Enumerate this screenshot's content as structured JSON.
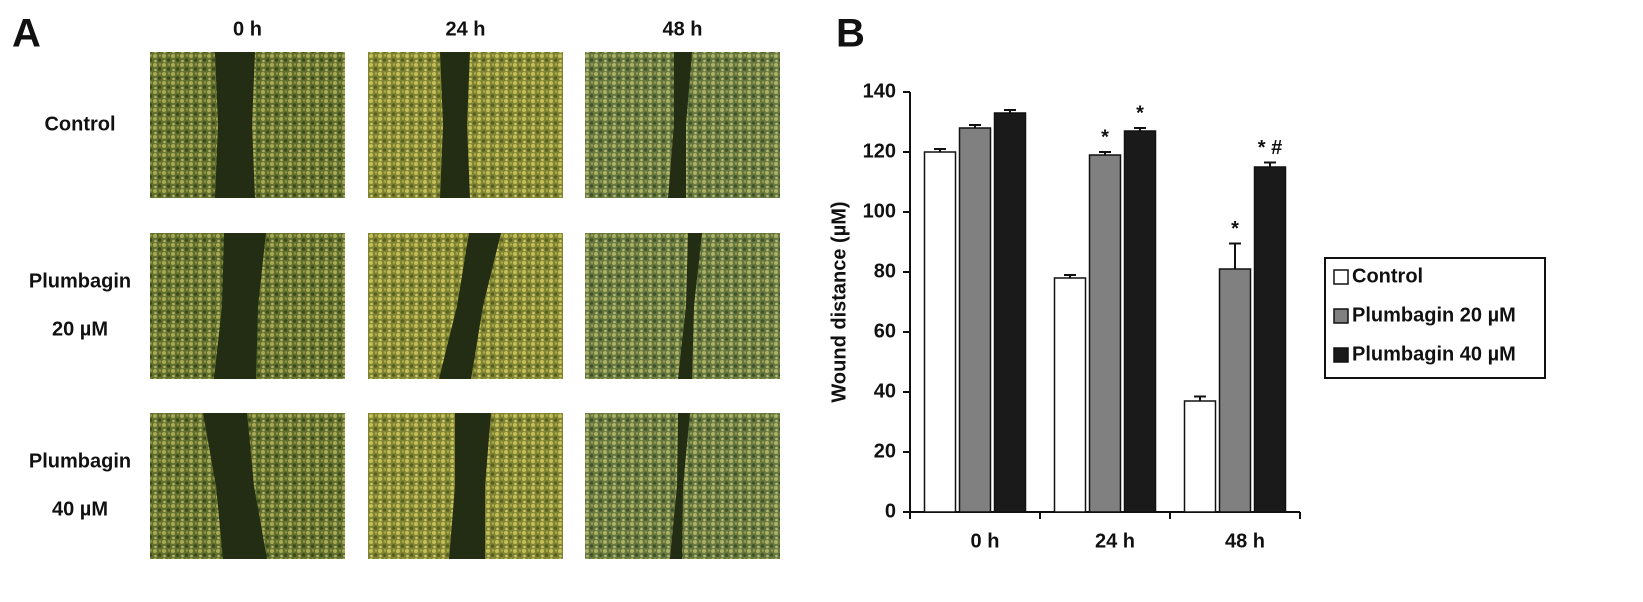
{
  "panel_a": {
    "label": "A",
    "columns": [
      "0 h",
      "24 h",
      "48 h"
    ],
    "rows": [
      {
        "label": [
          "Control"
        ]
      },
      {
        "label": [
          "Plumbagin",
          "20 µM"
        ]
      },
      {
        "label": [
          "Plumbagin",
          "40 µM"
        ]
      }
    ]
  },
  "chart_data": {
    "type": "bar",
    "label": "B",
    "ylabel": "Wound distance (µM)",
    "categories": [
      "0 h",
      "24 h",
      "48 h"
    ],
    "ylim": [
      0,
      140
    ],
    "yticks": [
      0,
      20,
      40,
      60,
      80,
      100,
      120,
      140
    ],
    "series": [
      {
        "name": "Control",
        "color": "#ffffff",
        "values": [
          120,
          78,
          37
        ],
        "errors": [
          1,
          1,
          1.5
        ],
        "annotations": [
          null,
          null,
          null
        ]
      },
      {
        "name": "Plumbagin 20 µM",
        "color": "#808080",
        "values": [
          128,
          119,
          81
        ],
        "errors": [
          1,
          1,
          8.5
        ],
        "annotations": [
          null,
          "*",
          "*"
        ]
      },
      {
        "name": "Plumbagin 40 µM",
        "color": "#1a1a1a",
        "values": [
          133,
          127,
          115
        ],
        "errors": [
          1,
          1,
          1.5
        ],
        "annotations": [
          null,
          "*",
          "* #"
        ]
      }
    ],
    "legend": "right"
  }
}
